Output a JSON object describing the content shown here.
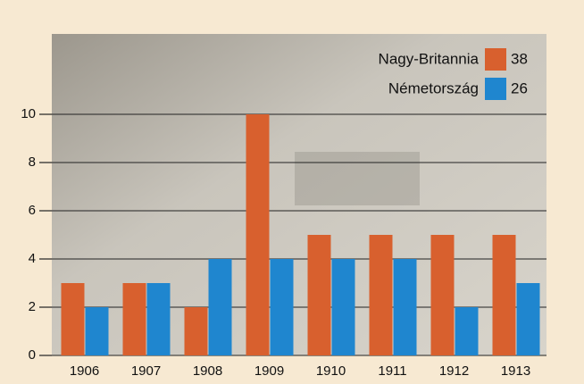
{
  "chart_data": {
    "type": "bar",
    "categories": [
      "1906",
      "1907",
      "1908",
      "1909",
      "1910",
      "1911",
      "1912",
      "1913"
    ],
    "series": [
      {
        "name": "Nagy-Britannia",
        "color": "#d8602e",
        "values": [
          3,
          3,
          2,
          10,
          5,
          5,
          5,
          5
        ],
        "total": 38
      },
      {
        "name": "Németország",
        "color": "#1f86cf",
        "values": [
          2,
          3,
          4,
          4,
          4,
          4,
          2,
          3
        ],
        "total": 26
      }
    ],
    "ylim": [
      0,
      10
    ],
    "yticks": [
      0,
      2,
      4,
      6,
      8,
      10
    ],
    "grid": true
  }
}
